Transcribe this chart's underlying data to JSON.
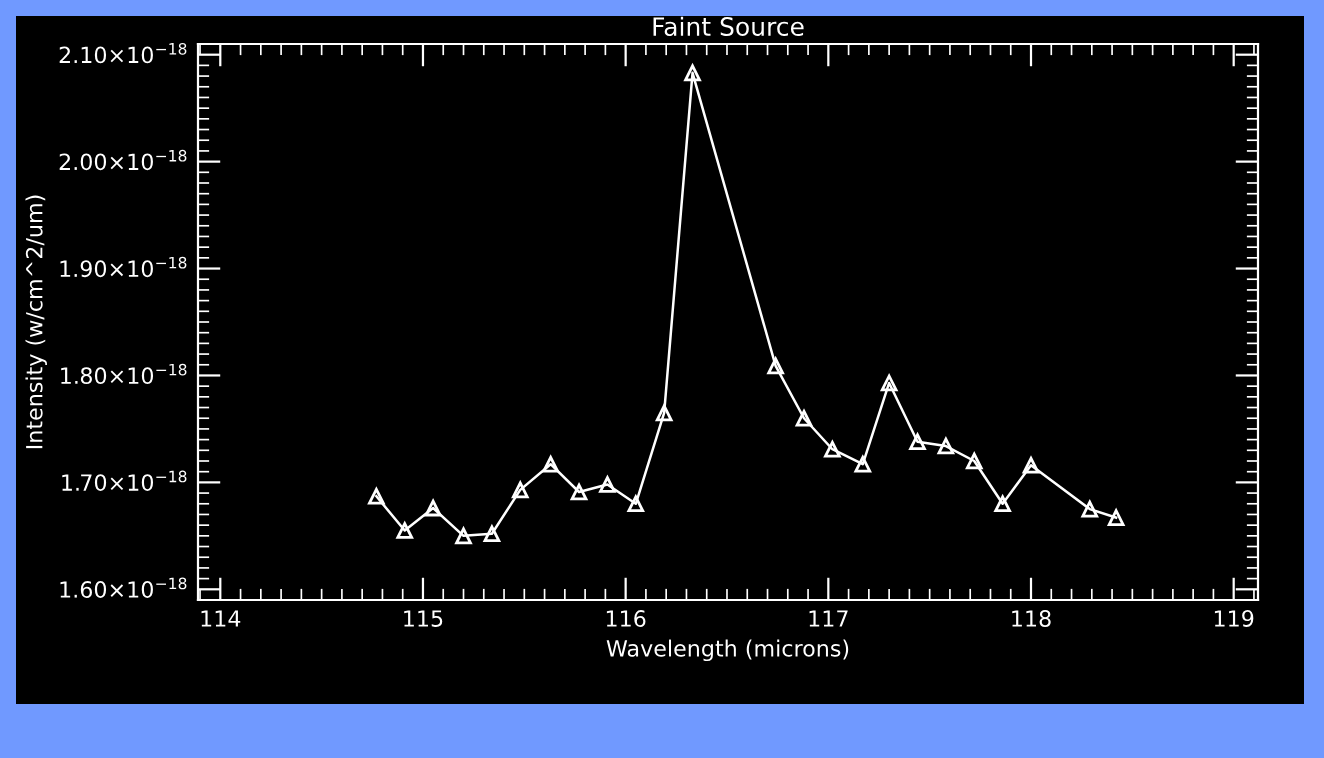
{
  "chart_data": {
    "type": "line",
    "title": "Faint Source",
    "xlabel": "Wavelength (microns)",
    "ylabel": "Intensity (w/cm^2/um)",
    "x": [
      114.77,
      114.91,
      115.05,
      115.2,
      115.34,
      115.48,
      115.63,
      115.77,
      115.91,
      116.05,
      116.19,
      116.33,
      116.74,
      116.88,
      117.02,
      117.17,
      117.3,
      117.44,
      117.58,
      117.72,
      117.86,
      118.0,
      118.29,
      118.42
    ],
    "series": [
      {
        "color": "#ffffff",
        "values": [
          1.687e-18,
          1.655e-18,
          1.676e-18,
          1.65e-18,
          1.652e-18,
          1.693e-18,
          1.717e-18,
          1.691e-18,
          1.698e-18,
          1.68e-18,
          1.765e-18,
          2.083e-18,
          1.809e-18,
          1.76e-18,
          1.731e-18,
          1.717e-18,
          1.793e-18,
          1.738e-18,
          1.734e-18,
          1.72e-18,
          1.68e-18,
          1.716e-18,
          1.675e-18,
          1.667e-18
        ]
      }
    ],
    "xlim": [
      113.89,
      119.12
    ],
    "xticks": [
      114,
      115,
      116,
      117,
      118,
      119
    ],
    "ylim": [
      1.59e-18,
      2.11e-18
    ],
    "yticks": [
      {
        "value": 1.6e-18,
        "label": "1.60×10$^{−18}$"
      },
      {
        "value": 1.7e-18,
        "label": "1.70×10$^{−18}$"
      },
      {
        "value": 1.8e-18,
        "label": "1.80×10$^{−18}$"
      },
      {
        "value": 1.9e-18,
        "label": "1.90×10$^{−18}$"
      },
      {
        "value": 2e-18,
        "label": "2.00×10$^{−18}$"
      },
      {
        "value": 2.1e-18,
        "label": "2.10×10$^{−18}$"
      }
    ],
    "marker": "triangle",
    "line_style": "solid",
    "grid": false,
    "legend": false
  }
}
